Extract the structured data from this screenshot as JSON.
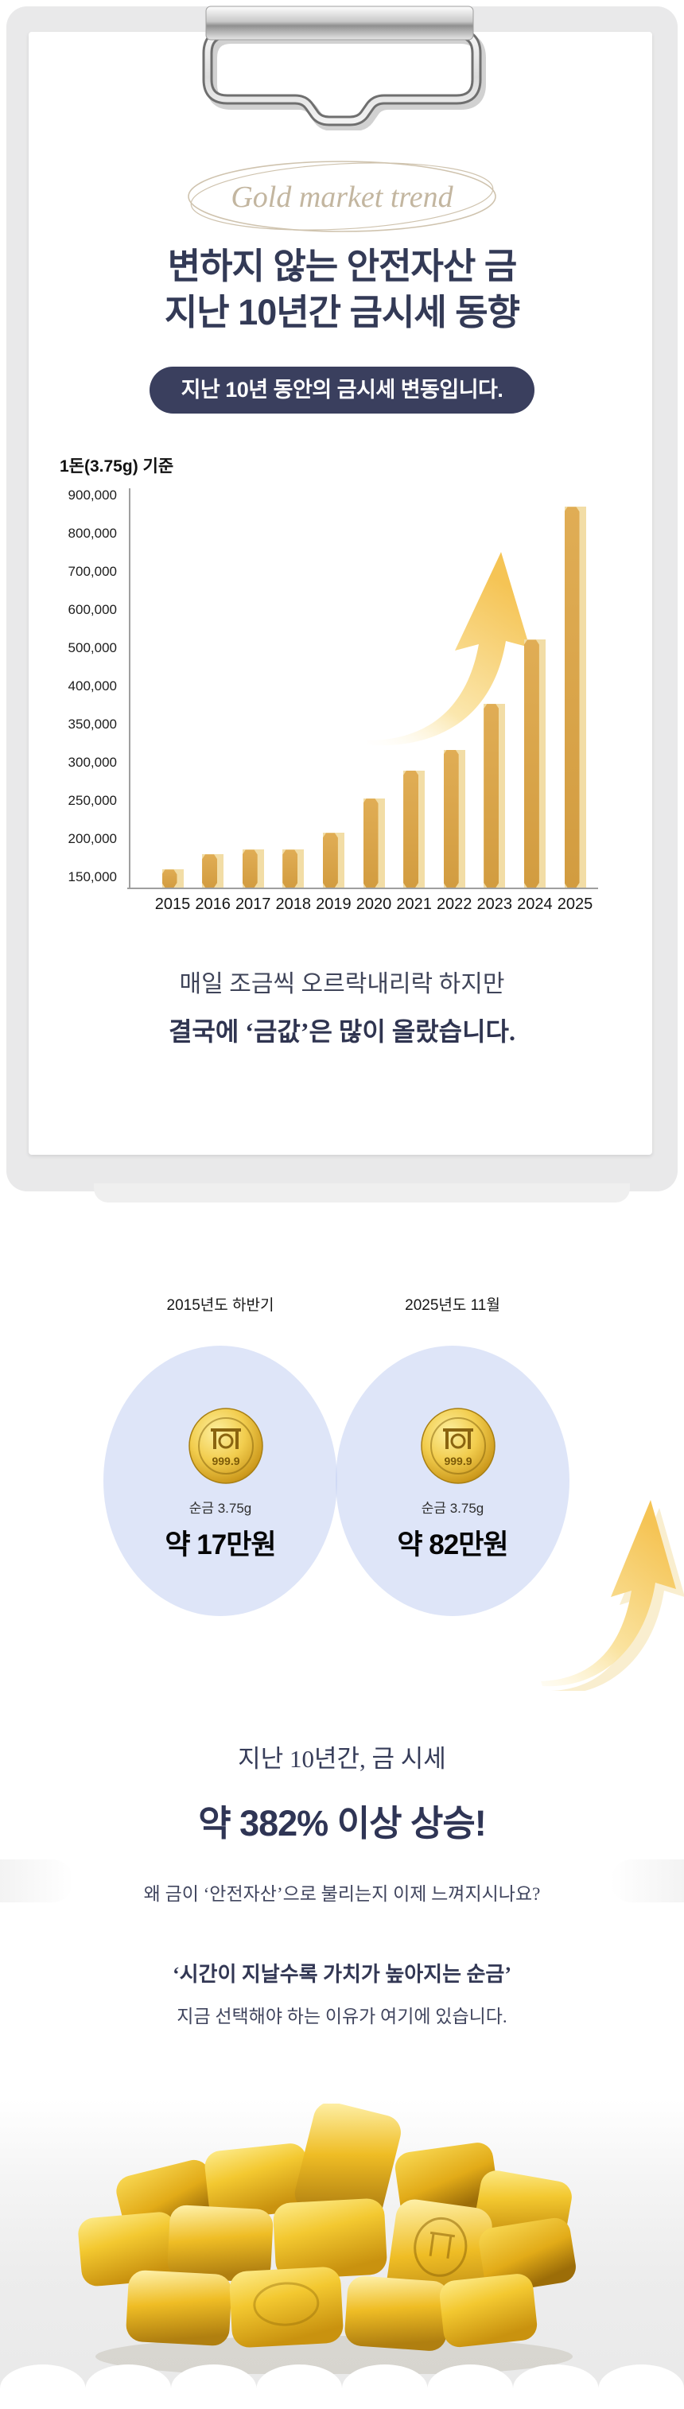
{
  "logo": {
    "text": "Gold market trend"
  },
  "title": {
    "line1": "변하지 않는 안전자산 금",
    "line2": "지난 10년간 금시세 동향"
  },
  "badge": {
    "label": "지난 10년 동안의 금시세 변동입니다."
  },
  "chart_data": {
    "type": "bar",
    "title": "1돈(3.75g) 기준",
    "categories": [
      "2015",
      "2016",
      "2017",
      "2018",
      "2019",
      "2020",
      "2021",
      "2022",
      "2023",
      "2024",
      "2025"
    ],
    "values": [
      160000,
      180000,
      186000,
      186000,
      208000,
      253000,
      290000,
      317000,
      377000,
      522000,
      870000
    ],
    "y_ticks": [
      900000,
      800000,
      700000,
      600000,
      500000,
      400000,
      350000,
      300000,
      250000,
      200000,
      150000
    ],
    "axis_note": "ticks evenly spaced: 100,000 steps above 400,000 and 50,000 steps below (non-linear axis)",
    "bar_color": "#d8a348",
    "bar_highlight": "#f2dda6",
    "legend": "none",
    "grid": "off"
  },
  "caption": {
    "line1": "매일 조금씩 오르락내리락 하지만",
    "line2": "결국에 ‘금값’은 많이 올랐습니다."
  },
  "comparison": {
    "left": {
      "period": "2015년도 하반기",
      "coin_mark": "999.9",
      "weight": "순금 3.75g",
      "price": "약 17만원"
    },
    "right": {
      "period": "2025년도 11월",
      "coin_mark": "999.9",
      "weight": "순금 3.75g",
      "price": "약 82만원"
    }
  },
  "summary": {
    "line1": "지난 10년간, 금 시세",
    "line2": "약 382% 이상 상승!"
  },
  "closing": {
    "line1": "왜 금이 ‘안전자산’으로 불리는지 이제 느껴지시나요?",
    "line2": "‘시간이 지날수록 가치가 높아지는 순금’",
    "line3": "지금 선택해야 하는 이유가 여기에 있습니다."
  },
  "colors": {
    "navy": "#333a56",
    "badge_bg": "#3a3f5e",
    "gold_bar": "#d8a348",
    "circle_blue": "#dce3f8",
    "logo_beige": "#c8bba6"
  }
}
